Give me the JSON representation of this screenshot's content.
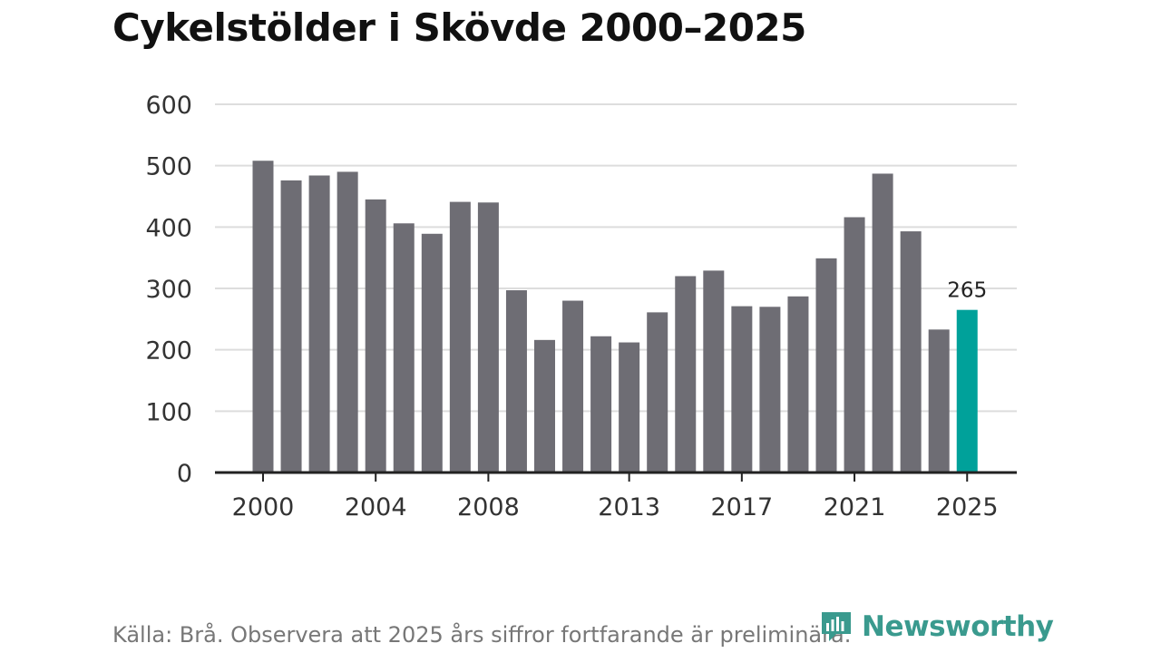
{
  "colors": {
    "bar": "#6e6d74",
    "highlight": "#00a19a",
    "grid": "#dddddd",
    "axis": "#222222",
    "brand": "#3a9a8e"
  },
  "source_note": "Källa: Brå. Observera att 2025 års siffror fortfarande är preliminära.",
  "brand": {
    "name": "Newsworthy",
    "icon": "newsworthy-chart-icon"
  },
  "chart_data": {
    "type": "bar",
    "title": "Cykelstölder i Skövde 2000–2025",
    "xlabel": "",
    "ylabel": "",
    "ylim": [
      0,
      600
    ],
    "yticks": [
      0,
      100,
      200,
      300,
      400,
      500,
      600
    ],
    "xtick_labels": [
      "2000",
      "2004",
      "2008",
      "2013",
      "2017",
      "2021",
      "2025"
    ],
    "categories": [
      "2000",
      "2001",
      "2002",
      "2003",
      "2004",
      "2005",
      "2006",
      "2007",
      "2008",
      "2009",
      "2010",
      "2011",
      "2012",
      "2013",
      "2014",
      "2015",
      "2016",
      "2017",
      "2018",
      "2019",
      "2020",
      "2021",
      "2022",
      "2023",
      "2024",
      "2025"
    ],
    "values": [
      508,
      476,
      484,
      490,
      445,
      406,
      389,
      441,
      440,
      297,
      216,
      280,
      222,
      212,
      261,
      320,
      329,
      271,
      270,
      287,
      349,
      416,
      487,
      393,
      233,
      265
    ],
    "highlight": {
      "category": "2025",
      "value": 265,
      "label": "265"
    },
    "grid": true
  }
}
